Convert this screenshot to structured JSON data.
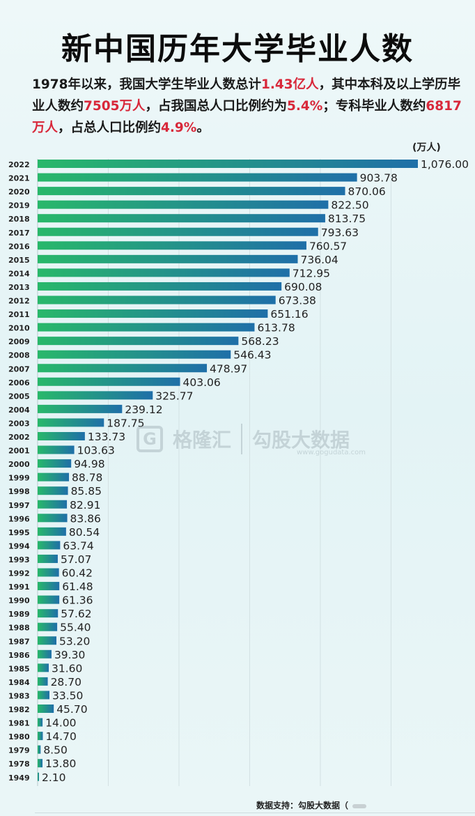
{
  "title": "新中国历年大学毕业人数",
  "summary": {
    "p1": "1978年以来，我国大学生毕业人数总计",
    "total": "1.43亿人",
    "p2": "，其中本科及以上学历毕业人数约",
    "bachelor": "7505万人",
    "p3": "，占我国总人口比例约为",
    "bachelor_pct": "5.4%",
    "p4": "；专科毕业人数约",
    "college": "6817万人",
    "p5": "，占总人口比例约",
    "college_pct": "4.9%",
    "p6": "。"
  },
  "unit": "(万人)",
  "watermark": {
    "logo": "G",
    "brand1": "格隆汇",
    "brand2": "勾股大数据",
    "url": "www.gogudata.com"
  },
  "source": "数据支持：勾股大数据（",
  "colors": {
    "bar_left": "#28b86a",
    "bar_right": "#1f6fa8",
    "highlight": "#d8283a"
  },
  "chart_data": {
    "type": "bar",
    "orientation": "horizontal",
    "title": "新中国历年大学毕业人数",
    "unit": "(万人)",
    "categories": [
      "2022",
      "2021",
      "2020",
      "2019",
      "2018",
      "2017",
      "2016",
      "2015",
      "2014",
      "2013",
      "2012",
      "2011",
      "2010",
      "2009",
      "2008",
      "2007",
      "2006",
      "2005",
      "2004",
      "2003",
      "2002",
      "2001",
      "2000",
      "1999",
      "1998",
      "1997",
      "1996",
      "1995",
      "1994",
      "1993",
      "1992",
      "1991",
      "1990",
      "1989",
      "1988",
      "1987",
      "1986",
      "1985",
      "1984",
      "1983",
      "1982",
      "1981",
      "1980",
      "1979",
      "1978",
      "1949"
    ],
    "values": [
      1076.0,
      903.78,
      870.06,
      822.5,
      813.75,
      793.63,
      760.57,
      736.04,
      712.95,
      690.08,
      673.38,
      651.16,
      613.78,
      568.23,
      546.43,
      478.97,
      403.06,
      325.77,
      239.12,
      187.75,
      133.73,
      103.63,
      94.98,
      88.78,
      85.85,
      82.91,
      83.86,
      80.54,
      63.74,
      57.07,
      60.42,
      61.48,
      61.36,
      57.62,
      55.4,
      53.2,
      39.3,
      31.6,
      28.7,
      33.5,
      45.7,
      14.0,
      14.7,
      8.5,
      13.8,
      2.1
    ],
    "labels": [
      "1,076.00",
      "903.78",
      "870.06",
      "822.50",
      "813.75",
      "793.63",
      "760.57",
      "736.04",
      "712.95",
      "690.08",
      "673.38",
      "651.16",
      "613.78",
      "568.23",
      "546.43",
      "478.97",
      "403.06",
      "325.77",
      "239.12",
      "187.75",
      "133.73",
      "103.63",
      "94.98",
      "88.78",
      "85.85",
      "82.91",
      "83.86",
      "80.54",
      "63.74",
      "57.07",
      "60.42",
      "61.48",
      "61.36",
      "57.62",
      "55.40",
      "53.20",
      "39.30",
      "31.60",
      "28.70",
      "33.50",
      "45.70",
      "14.00",
      "14.70",
      "8.50",
      "13.80",
      "2.10"
    ],
    "xlim": [
      0,
      1100
    ],
    "grid": true
  }
}
